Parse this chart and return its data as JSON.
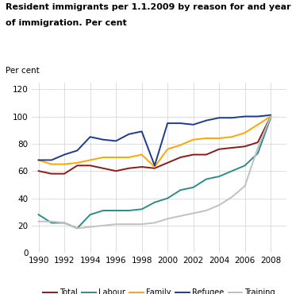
{
  "title_line1": "Resident immigrants per 1.1.2009 by reason for and year",
  "title_line2": "of immigration. Per cent",
  "ylabel": "Per cent",
  "years": [
    1990,
    1991,
    1992,
    1993,
    1994,
    1995,
    1996,
    1997,
    1998,
    1999,
    2000,
    2001,
    2002,
    2003,
    2004,
    2005,
    2006,
    2007,
    2008
  ],
  "total": [
    60,
    58,
    58,
    64,
    64,
    62,
    60,
    62,
    63,
    62,
    66,
    70,
    72,
    72,
    76,
    77,
    78,
    81,
    100
  ],
  "labour": [
    28,
    22,
    22,
    18,
    28,
    31,
    31,
    31,
    32,
    37,
    40,
    46,
    48,
    54,
    56,
    60,
    64,
    73,
    99
  ],
  "family": [
    68,
    65,
    65,
    66,
    68,
    70,
    70,
    70,
    72,
    63,
    76,
    79,
    83,
    84,
    84,
    85,
    88,
    94,
    100
  ],
  "refugee": [
    68,
    68,
    72,
    75,
    85,
    83,
    82,
    87,
    89,
    64,
    95,
    95,
    94,
    97,
    99,
    99,
    100,
    100,
    101
  ],
  "training": [
    23,
    23,
    22,
    18,
    19,
    20,
    21,
    21,
    21,
    22,
    25,
    27,
    29,
    31,
    35,
    41,
    49,
    77,
    100
  ],
  "colors": {
    "total": "#8B1A1A",
    "labour": "#2E8B8B",
    "family": "#FFA500",
    "refugee": "#1C3C8C",
    "training": "#C0C0C0"
  },
  "ylim": [
    0,
    125
  ],
  "yticks": [
    0,
    20,
    40,
    60,
    80,
    100,
    120
  ],
  "xlim": [
    1989.5,
    2009.2
  ],
  "xticks": [
    1990,
    1992,
    1994,
    1996,
    1998,
    2000,
    2002,
    2004,
    2006,
    2008
  ],
  "grid_color": "#D0D0D0",
  "bg_color": "#FFFFFF",
  "legend_labels": [
    "Total",
    "Labour",
    "Family",
    "Refugee",
    "Training"
  ],
  "legend_keys": [
    "total",
    "labour",
    "family",
    "refugee",
    "training"
  ]
}
